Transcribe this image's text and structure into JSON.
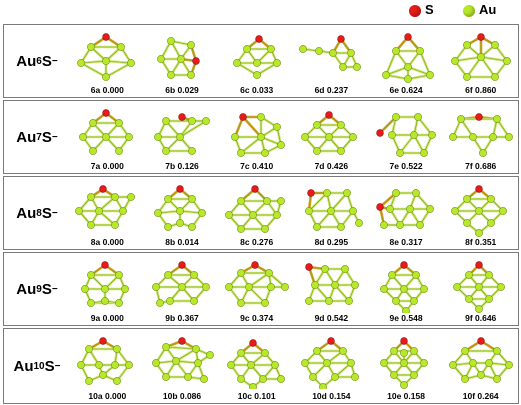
{
  "colors": {
    "S": "#e81a1a",
    "Au": "#b7e82a",
    "bond": "#c9e86a",
    "border": "#7a7a7a"
  },
  "legend": [
    {
      "symbol": "S",
      "color": "#e81a1a"
    },
    {
      "symbol": "Au",
      "color": "#b7e82a"
    }
  ],
  "panels": [
    {
      "label": {
        "el": "Au",
        "n": "6",
        "s": "S",
        "charge": "−"
      },
      "items": [
        {
          "caption": "6a 0.000"
        },
        {
          "caption": "6b 0.029"
        },
        {
          "caption": "6c 0.033"
        },
        {
          "caption": "6d 0.237"
        },
        {
          "caption": "6e 0.624"
        },
        {
          "caption": "6f 0.860"
        }
      ]
    },
    {
      "label": {
        "el": "Au",
        "n": "7",
        "s": "S",
        "charge": "−"
      },
      "items": [
        {
          "caption": "7a 0.000"
        },
        {
          "caption": "7b 0.126"
        },
        {
          "caption": "7c 0.410"
        },
        {
          "caption": "7d 0.426"
        },
        {
          "caption": "7e 0.522"
        },
        {
          "caption": "7f 0.686"
        }
      ]
    },
    {
      "label": {
        "el": "Au",
        "n": "8",
        "s": "S",
        "charge": "−"
      },
      "items": [
        {
          "caption": "8a 0.000"
        },
        {
          "caption": "8b 0.014"
        },
        {
          "caption": "8c 0.276"
        },
        {
          "caption": "8d 0.295"
        },
        {
          "caption": "8e 0.317"
        },
        {
          "caption": "8f 0.351"
        }
      ]
    },
    {
      "label": {
        "el": "Au",
        "n": "9",
        "s": "S",
        "charge": "−"
      },
      "items": [
        {
          "caption": "9a 0.000"
        },
        {
          "caption": "9b 0.367"
        },
        {
          "caption": "9c 0.374"
        },
        {
          "caption": "9d 0.542"
        },
        {
          "caption": "9e 0.548"
        },
        {
          "caption": "9f 0.646"
        }
      ]
    },
    {
      "label": {
        "el": "Au",
        "n": "10",
        "s": "S",
        "charge": "−"
      },
      "items": [
        {
          "caption": "10a 0.000"
        },
        {
          "caption": "10b 0.086"
        },
        {
          "caption": "10c 0.101"
        },
        {
          "caption": "10d 0.154"
        },
        {
          "caption": "10e 0.158"
        },
        {
          "caption": "10f 0.264"
        }
      ]
    }
  ]
}
